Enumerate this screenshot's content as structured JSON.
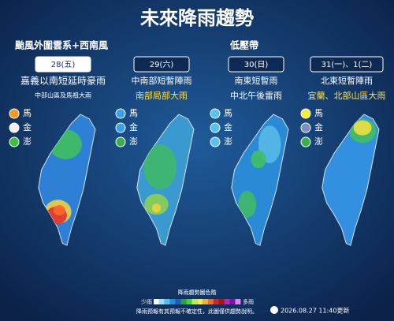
{
  "title": "未來降雨趨勢",
  "phases": [
    {
      "label": "颱風外圍雲系+西南風"
    },
    {
      "label": "低壓帶"
    }
  ],
  "days": [
    {
      "date": "28(五)",
      "lines": [
        "嘉義以南短延時豪雨",
        "中部山區及馬祖大雨"
      ],
      "islands": [
        "馬",
        "金",
        "澎"
      ]
    },
    {
      "date": "29(六)",
      "lines": [
        "中南部短暫陣雨",
        "南部局部大雨"
      ],
      "islands": [
        "馬",
        "金",
        "澎"
      ]
    },
    {
      "date": "30(日)",
      "lines": [
        "南東短暫雨",
        "中北午後雷雨"
      ],
      "islands": [
        "馬",
        "金",
        "澎"
      ]
    },
    {
      "date": "31(一)、1(二)",
      "lines": [
        "北東短暫陣雨",
        "宜蘭、北部山區大雨"
      ],
      "islands": [
        "馬",
        "金",
        "澎"
      ]
    }
  ],
  "legend": {
    "title": "降雨趨勢圖色階",
    "low": "少雨",
    "high": "多雨"
  },
  "footer": {
    "note": "降雨預報有其預報不確定性，此圖僅供趨勢說明。",
    "updated": "2026.08.27 11:40更新"
  }
}
